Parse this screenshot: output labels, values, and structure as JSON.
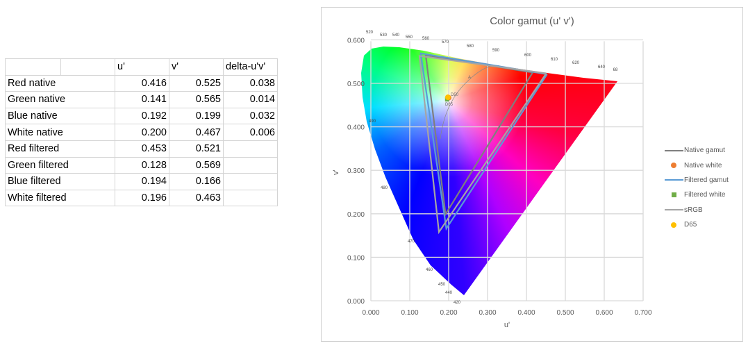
{
  "table": {
    "headers": [
      "",
      "",
      "u'",
      "v'",
      "delta-u'v'"
    ],
    "rows": [
      {
        "label": "Red native",
        "u": "0.416",
        "v": "0.525",
        "delta": "0.038"
      },
      {
        "label": "Green native",
        "u": "0.141",
        "v": "0.565",
        "delta": "0.014"
      },
      {
        "label": "Blue native",
        "u": "0.192",
        "v": "0.199",
        "delta": "0.032"
      },
      {
        "label": "White native",
        "u": "0.200",
        "v": "0.467",
        "delta": "0.006"
      },
      {
        "label": "Red filtered",
        "u": "0.453",
        "v": "0.521",
        "delta": ""
      },
      {
        "label": "Green filtered",
        "u": "0.128",
        "v": "0.569",
        "delta": ""
      },
      {
        "label": "Blue filtered",
        "u": "0.194",
        "v": "0.166",
        "delta": ""
      },
      {
        "label": "White filtered",
        "u": "0.196",
        "v": "0.463",
        "delta": ""
      }
    ]
  },
  "chart_data": {
    "type": "scatter",
    "title": "Color gamut (u' v')",
    "xlabel": "u'",
    "ylabel": "v'",
    "xlim": [
      0,
      0.7
    ],
    "ylim": [
      0,
      0.6
    ],
    "xticks": [
      "0.000",
      "0.100",
      "0.200",
      "0.300",
      "0.400",
      "0.500",
      "0.600",
      "0.700"
    ],
    "yticks": [
      "0.000",
      "0.100",
      "0.200",
      "0.300",
      "0.400",
      "0.500",
      "0.600"
    ],
    "grid": true,
    "legend_position": "right",
    "series": [
      {
        "name": "Native gamut",
        "kind": "line",
        "color": "#7f7f7f",
        "points": [
          [
            0.416,
            0.525
          ],
          [
            0.141,
            0.565
          ],
          [
            0.192,
            0.199
          ],
          [
            0.416,
            0.525
          ]
        ]
      },
      {
        "name": "Native white",
        "kind": "marker-circle",
        "color": "#ed7d31",
        "points": [
          [
            0.2,
            0.467
          ]
        ]
      },
      {
        "name": "Filtered gamut",
        "kind": "line",
        "color": "#5b9bd5",
        "points": [
          [
            0.453,
            0.521
          ],
          [
            0.128,
            0.569
          ],
          [
            0.194,
            0.166
          ],
          [
            0.453,
            0.521
          ]
        ]
      },
      {
        "name": "Filtered white",
        "kind": "marker-square",
        "color": "#70ad47",
        "points": [
          [
            0.196,
            0.463
          ]
        ]
      },
      {
        "name": "sRGB",
        "kind": "line",
        "color": "#a5a5a5",
        "points": [
          [
            0.451,
            0.523
          ],
          [
            0.125,
            0.563
          ],
          [
            0.175,
            0.158
          ],
          [
            0.451,
            0.523
          ]
        ]
      },
      {
        "name": "D65",
        "kind": "marker-circle",
        "color": "#ffc000",
        "points": [
          [
            0.198,
            0.468
          ]
        ]
      }
    ],
    "wavelength_labels": [
      "520",
      "530",
      "540",
      "550",
      "560",
      "570",
      "580",
      "590",
      "600",
      "610",
      "620",
      "640",
      "68",
      "490",
      "480",
      "470",
      "460",
      "450",
      "440",
      "420"
    ],
    "annotations": [
      "A",
      "D50",
      "D65"
    ]
  }
}
